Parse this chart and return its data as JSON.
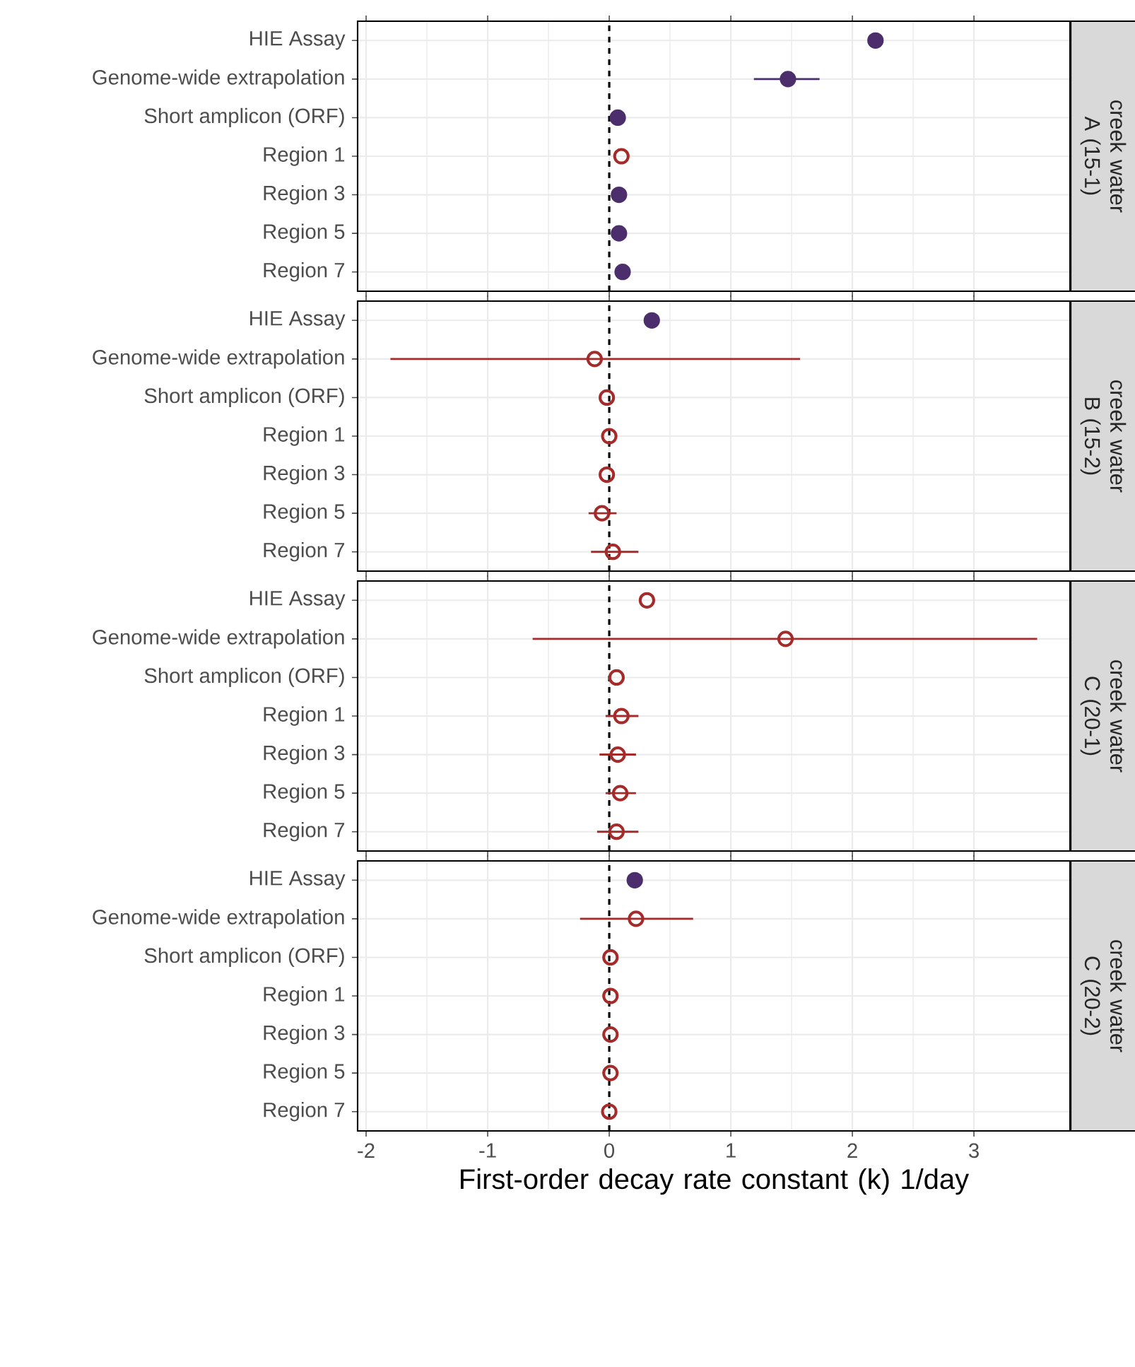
{
  "chart_data": [
    {
      "type": "scatter",
      "orientation": "horizontal",
      "title": "creek water A (15-1)",
      "categories": [
        "HIE Assay",
        "Genome-wide extrapolation",
        "Short amplicon (ORF)",
        "Region 1",
        "Region 3",
        "Region 5",
        "Region 7"
      ],
      "series": [
        {
          "color": "#4b2e6b",
          "values": [
            2.19,
            1.47,
            0.07,
            null,
            0.08,
            0.08,
            0.11
          ],
          "errors": [
            null,
            [
              1.19,
              1.73
            ],
            null,
            null,
            null,
            null,
            null
          ]
        },
        {
          "color": "#a52a2a",
          "values": [
            null,
            null,
            null,
            0.1,
            null,
            null,
            null
          ],
          "errors": [
            null,
            null,
            null,
            null,
            null,
            null,
            null
          ]
        }
      ],
      "xlim": [
        -2.07,
        3.79
      ],
      "xticks": [
        -2,
        -1,
        0,
        1,
        2,
        3
      ],
      "tick_labels": "y",
      "grid": true,
      "marker": "circle",
      "ref_lines": [
        {
          "axis": "x",
          "value": 0,
          "line_style": "dashed",
          "color": "#000000"
        }
      ]
    },
    {
      "type": "scatter",
      "orientation": "horizontal",
      "title": "creek water B (15-2)",
      "categories": [
        "HIE Assay",
        "Genome-wide extrapolation",
        "Short amplicon (ORF)",
        "Region 1",
        "Region 3",
        "Region 5",
        "Region 7"
      ],
      "series": [
        {
          "color": "#4b2e6b",
          "values": [
            0.35,
            null,
            null,
            null,
            null,
            null,
            null
          ],
          "errors": [
            null,
            null,
            null,
            null,
            null,
            null,
            null
          ]
        },
        {
          "color": "#a52a2a",
          "values": [
            null,
            -0.12,
            -0.02,
            0.0,
            -0.02,
            -0.06,
            0.03
          ],
          "errors": [
            null,
            [
              -1.8,
              1.57
            ],
            null,
            null,
            null,
            [
              -0.17,
              0.06
            ],
            [
              -0.15,
              0.24
            ]
          ]
        }
      ],
      "xlim": [
        -2.07,
        3.79
      ],
      "xticks": [
        -2,
        -1,
        0,
        1,
        2,
        3
      ],
      "tick_labels": "y",
      "grid": true,
      "marker": "circle",
      "ref_lines": [
        {
          "axis": "x",
          "value": 0,
          "line_style": "dashed",
          "color": "#000000"
        }
      ]
    },
    {
      "type": "scatter",
      "orientation": "horizontal",
      "title": "creek water C (20-1)",
      "categories": [
        "HIE Assay",
        "Genome-wide extrapolation",
        "Short amplicon (ORF)",
        "Region 1",
        "Region 3",
        "Region 5",
        "Region 7"
      ],
      "series": [
        {
          "color": "#4b2e6b",
          "values": [
            null,
            null,
            null,
            null,
            null,
            null,
            null
          ],
          "errors": [
            null,
            null,
            null,
            null,
            null,
            null,
            null
          ]
        },
        {
          "color": "#a52a2a",
          "values": [
            0.31,
            1.45,
            0.06,
            0.1,
            0.07,
            0.09,
            0.06
          ],
          "errors": [
            null,
            [
              -0.63,
              3.52
            ],
            null,
            [
              -0.03,
              0.24
            ],
            [
              -0.08,
              0.22
            ],
            [
              -0.03,
              0.22
            ],
            [
              -0.1,
              0.24
            ]
          ]
        }
      ],
      "xlim": [
        -2.07,
        3.79
      ],
      "xticks": [
        -2,
        -1,
        0,
        1,
        2,
        3
      ],
      "tick_labels": "y",
      "grid": true,
      "marker": "circle",
      "ref_lines": [
        {
          "axis": "x",
          "value": 0,
          "line_style": "dashed",
          "color": "#000000"
        }
      ]
    },
    {
      "type": "scatter",
      "orientation": "horizontal",
      "title": "creek water C (20-2)",
      "xlabel": "First-order decay rate constant (k) 1/day",
      "categories": [
        "HIE Assay",
        "Genome-wide extrapolation",
        "Short amplicon (ORF)",
        "Region 1",
        "Region 3",
        "Region 5",
        "Region 7"
      ],
      "series": [
        {
          "color": "#4b2e6b",
          "values": [
            0.21,
            null,
            null,
            null,
            null,
            null,
            null
          ],
          "errors": [
            null,
            null,
            null,
            null,
            null,
            null,
            null
          ]
        },
        {
          "color": "#a52a2a",
          "values": [
            null,
            0.22,
            0.01,
            0.01,
            0.01,
            0.01,
            0.0
          ],
          "errors": [
            null,
            [
              -0.24,
              0.69
            ],
            null,
            null,
            null,
            null,
            null
          ]
        }
      ],
      "xlim": [
        -2.07,
        3.79
      ],
      "xticks": [
        -2,
        -1,
        0,
        1,
        2,
        3
      ],
      "grid": true,
      "marker": "circle",
      "ref_lines": [
        {
          "axis": "x",
          "value": 0,
          "line_style": "dashed",
          "color": "#000000"
        }
      ]
    }
  ]
}
